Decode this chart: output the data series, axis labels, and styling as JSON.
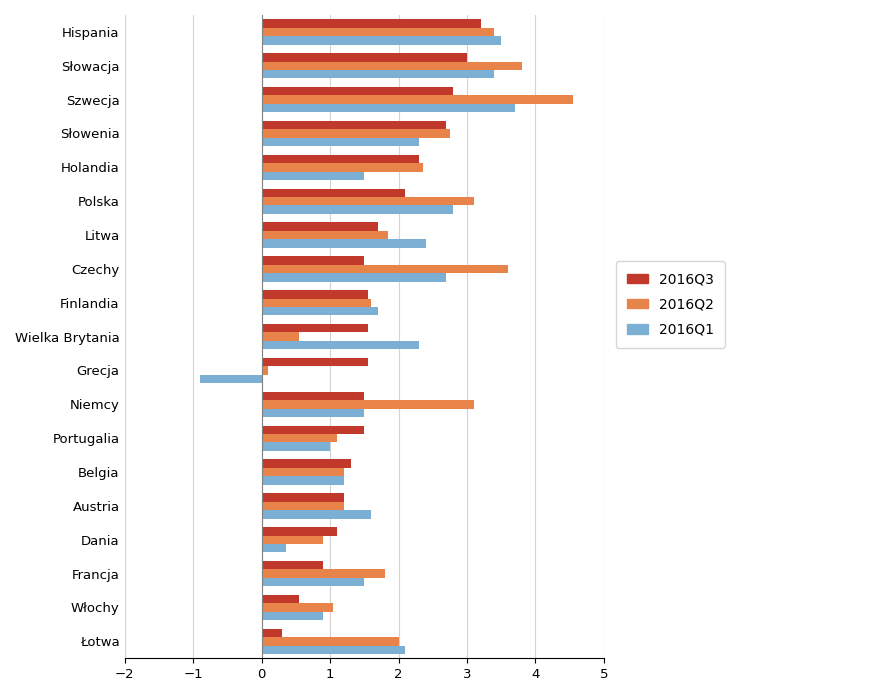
{
  "categories": [
    "Hispania",
    "Słowacja",
    "Szwecja",
    "Słowenia",
    "Holandia",
    "Polska",
    "Litwa",
    "Czechy",
    "Finlandia",
    "Wielka Brytania",
    "Grecja",
    "Niemcy",
    "Portugalia",
    "Belgia",
    "Austria",
    "Dania",
    "Francja",
    "Włochy",
    "Łotwa"
  ],
  "q3_2016": [
    3.2,
    3.0,
    2.8,
    2.7,
    2.3,
    2.1,
    1.7,
    1.5,
    1.55,
    1.55,
    1.55,
    1.5,
    1.5,
    1.3,
    1.2,
    1.1,
    0.9,
    0.55,
    0.3
  ],
  "q2_2016": [
    3.4,
    3.8,
    4.55,
    2.75,
    2.35,
    3.1,
    1.85,
    3.6,
    1.6,
    0.55,
    0.1,
    3.1,
    1.1,
    1.2,
    1.2,
    0.9,
    1.8,
    1.05,
    2.0
  ],
  "q1_2016": [
    3.5,
    3.4,
    3.7,
    2.3,
    1.5,
    2.8,
    2.4,
    2.7,
    1.7,
    2.3,
    -0.9,
    1.5,
    1.0,
    1.2,
    1.6,
    0.35,
    1.5,
    0.9,
    2.1
  ],
  "color_q3": "#C0392B",
  "color_q2": "#E8834A",
  "color_q1": "#7BAFD4",
  "xlim": [
    -2,
    5
  ],
  "xticks": [
    -2,
    -1,
    0,
    1,
    2,
    3,
    4,
    5
  ],
  "legend_labels": [
    "2016Q3",
    "2016Q2",
    "2016Q1"
  ],
  "figsize": [
    8.94,
    6.96
  ],
  "dpi": 100
}
